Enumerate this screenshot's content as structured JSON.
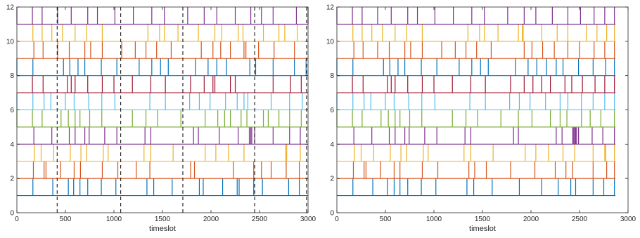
{
  "chart_data": [
    {
      "type": "line",
      "subtype": "event-raster",
      "xlabel": "timeslot",
      "ylabel": "",
      "xlim": [
        0,
        3000
      ],
      "ylim": [
        0,
        12
      ],
      "xticks": [
        0,
        500,
        1000,
        1500,
        2000,
        2500,
        3000
      ],
      "yticks": [
        0,
        2,
        4,
        6,
        8,
        10,
        12
      ],
      "grid": false,
      "box": true,
      "x_end": 3000,
      "event_height": 1,
      "dashed_vlines": [
        415,
        1070,
        1710,
        2450,
        2985
      ],
      "series": [
        {
          "baseline": 1,
          "color": "#0072BD",
          "x": [
            165,
            370,
            530,
            585,
            650,
            730,
            870,
            1020,
            1340,
            1410,
            1600,
            1880,
            1920,
            2120,
            2270,
            2290,
            2440,
            2530,
            2800,
            2910
          ]
        },
        {
          "baseline": 2,
          "color": "#D95319",
          "x": [
            170,
            280,
            300,
            450,
            590,
            655,
            880,
            1040,
            1230,
            1370,
            1790,
            1830,
            2230,
            2440,
            2520,
            2620,
            2775,
            2910
          ]
        },
        {
          "baseline": 3,
          "color": "#EDB120",
          "x": [
            180,
            250,
            380,
            550,
            660,
            720,
            890,
            940,
            1310,
            1380,
            1610,
            1940,
            2050,
            2180,
            2340,
            2770,
            2780,
            2920
          ]
        },
        {
          "baseline": 4,
          "color": "#7E2F8E",
          "x": [
            175,
            360,
            540,
            600,
            700,
            745,
            905,
            1030,
            1320,
            1380,
            1820,
            1870,
            2085,
            2280,
            2395,
            2410,
            2420,
            2450,
            2640,
            2810,
            2920
          ]
        },
        {
          "baseline": 5,
          "color": "#77AC30",
          "x": [
            0,
            160,
            260,
            455,
            530,
            600,
            650,
            750,
            875,
            1190,
            1330,
            1450,
            1690,
            1940,
            2070,
            2140,
            2200,
            2310,
            2370,
            2540,
            2590,
            2700,
            2810,
            2930
          ]
        },
        {
          "baseline": 6,
          "color": "#4DBEEE",
          "x": [
            0,
            165,
            280,
            350,
            500,
            590,
            740,
            875,
            1010,
            1370,
            1530,
            1780,
            1880,
            1990,
            2150,
            2270,
            2340,
            2380,
            2620,
            2810,
            2940
          ]
        },
        {
          "baseline": 7,
          "color": "#A2142F",
          "x": [
            160,
            270,
            520,
            560,
            600,
            730,
            880,
            1000,
            1190,
            1380,
            1530,
            1790,
            1930,
            2020,
            2040,
            2200,
            2250,
            2640,
            2820,
            2930
          ]
        },
        {
          "baseline": 8,
          "color": "#0072BD",
          "x": [
            0,
            165,
            480,
            545,
            630,
            700,
            870,
            1030,
            1260,
            1390,
            1480,
            1560,
            1840,
            1970,
            2060,
            2160,
            2400,
            2460,
            2640,
            2860,
            2980
          ]
        },
        {
          "baseline": 9,
          "color": "#D95319",
          "x": [
            175,
            270,
            420,
            540,
            700,
            760,
            880,
            1080,
            1220,
            1330,
            1440,
            1590,
            1900,
            2020,
            2100,
            2200,
            2340,
            2360,
            2490,
            2650,
            2860
          ]
        },
        {
          "baseline": 10,
          "color": "#EDB120",
          "x": [
            165,
            260,
            360,
            470,
            600,
            720,
            880,
            1350,
            1470,
            1520,
            1660,
            1870,
            2040,
            2110,
            2280,
            2330,
            2540,
            2700,
            2760,
            2890
          ]
        },
        {
          "baseline": 11,
          "color": "#7E2F8E",
          "x": [
            0,
            160,
            260,
            420,
            560,
            730,
            830,
            1010,
            1200,
            1390,
            1520,
            1760,
            1930,
            2060,
            2250,
            2410,
            2520,
            2640,
            2880,
            3000
          ]
        }
      ]
    },
    {
      "type": "line",
      "subtype": "event-raster",
      "xlabel": "timeslot",
      "ylabel": "",
      "xlim": [
        0,
        3000
      ],
      "ylim": [
        0,
        12
      ],
      "xticks": [
        0,
        500,
        1000,
        1500,
        2000,
        2500,
        3000
      ],
      "yticks": [
        0,
        2,
        4,
        6,
        8,
        10,
        12
      ],
      "grid": false,
      "box": true,
      "x_end": 2870,
      "event_height": 1,
      "dashed_vlines": [],
      "series": [
        {
          "baseline": 1,
          "color": "#0072BD",
          "x": [
            165,
            370,
            520,
            590,
            650,
            730,
            870,
            1020,
            1340,
            1410,
            1600,
            1880,
            2110,
            2280,
            2410,
            2460,
            2640,
            2750,
            2860
          ]
        },
        {
          "baseline": 2,
          "color": "#D95319",
          "x": [
            170,
            280,
            300,
            450,
            590,
            650,
            880,
            1040,
            1360,
            1420,
            1540,
            1790,
            2040,
            2250,
            2360,
            2430,
            2640,
            2780,
            2860
          ]
        },
        {
          "baseline": 3,
          "color": "#EDB120",
          "x": [
            180,
            250,
            380,
            550,
            660,
            720,
            890,
            940,
            1310,
            1380,
            1610,
            1940,
            2050,
            2180,
            2330,
            2450,
            2640,
            2760,
            2770,
            2860
          ]
        },
        {
          "baseline": 4,
          "color": "#7E2F8E",
          "x": [
            175,
            360,
            540,
            600,
            700,
            745,
            905,
            1030,
            1320,
            1380,
            1820,
            1870,
            2260,
            2320,
            2430,
            2440,
            2450,
            2460,
            2470,
            2490,
            2630,
            2740,
            2860
          ]
        },
        {
          "baseline": 5,
          "color": "#77AC30",
          "x": [
            0,
            160,
            260,
            455,
            530,
            600,
            650,
            750,
            875,
            1190,
            1330,
            1450,
            1690,
            1870,
            2010,
            2200,
            2300,
            2370,
            2520,
            2610,
            2720,
            2860
          ]
        },
        {
          "baseline": 6,
          "color": "#4DBEEE",
          "x": [
            0,
            165,
            280,
            350,
            500,
            590,
            740,
            875,
            1010,
            1370,
            1530,
            1780,
            1880,
            1990,
            2150,
            2300,
            2380,
            2520,
            2640,
            2760,
            2860
          ]
        },
        {
          "baseline": 7,
          "color": "#A2142F",
          "x": [
            160,
            270,
            520,
            560,
            600,
            730,
            880,
            1000,
            1190,
            1380,
            1530,
            1790,
            1930,
            2020,
            2110,
            2200,
            2350,
            2420,
            2530,
            2660,
            2760,
            2860
          ]
        },
        {
          "baseline": 8,
          "color": "#0072BD",
          "x": [
            0,
            165,
            480,
            545,
            630,
            700,
            870,
            1030,
            1260,
            1390,
            1480,
            1560,
            1840,
            1970,
            2060,
            2160,
            2260,
            2330,
            2490,
            2640,
            2770,
            2860
          ]
        },
        {
          "baseline": 9,
          "color": "#D95319",
          "x": [
            175,
            270,
            420,
            540,
            700,
            760,
            880,
            1080,
            1220,
            1330,
            1440,
            1590,
            1930,
            2010,
            2120,
            2240,
            2380,
            2500,
            2650,
            2760,
            2860
          ]
        },
        {
          "baseline": 10,
          "color": "#EDB120",
          "x": [
            165,
            260,
            360,
            470,
            600,
            720,
            880,
            1350,
            1470,
            1520,
            1660,
            1870,
            1910,
            1920,
            2110,
            2270,
            2380,
            2570,
            2680,
            2780,
            2860
          ]
        },
        {
          "baseline": 11,
          "color": "#7E2F8E",
          "x": [
            0,
            160,
            260,
            420,
            560,
            730,
            830,
            1010,
            1200,
            1390,
            1520,
            1760,
            1930,
            2050,
            2220,
            2380,
            2510,
            2650,
            2760,
            2860
          ]
        }
      ]
    }
  ]
}
